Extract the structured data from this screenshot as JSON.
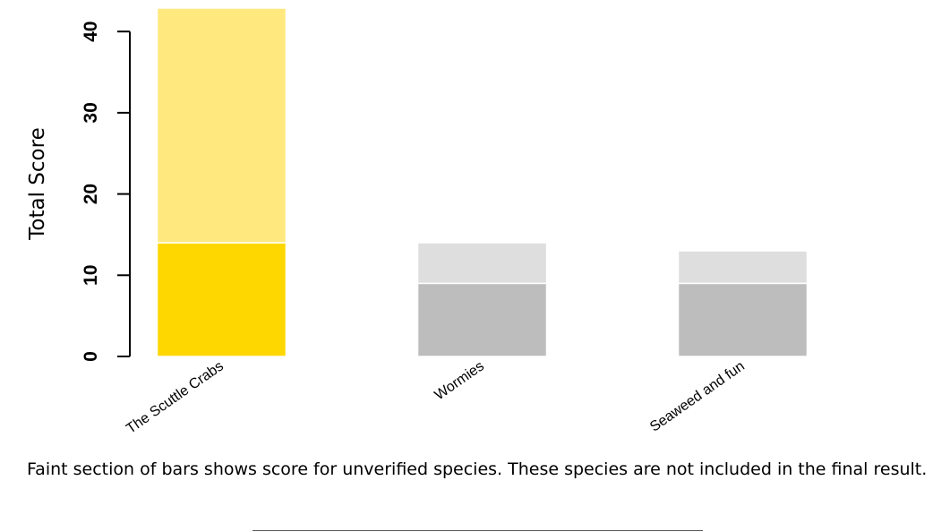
{
  "chart_data": {
    "type": "bar",
    "stacked": true,
    "categories": [
      "The Scuttle Crabs",
      "Wormies",
      "Seaweed and fun"
    ],
    "series": [
      {
        "verified": true,
        "values": [
          14,
          9,
          9
        ],
        "colors": [
          "#FFD700",
          "#BDBDBD",
          "#BDBDBD"
        ]
      },
      {
        "verified": false,
        "values": [
          29,
          5,
          4
        ],
        "colors": [
          "#FFE97F",
          "#DEDEDE",
          "#DEDEDE"
        ]
      }
    ],
    "ylabel": "Total Score",
    "yticks": [
      0,
      10,
      20,
      30,
      40
    ],
    "ylim": [
      0,
      43
    ],
    "grid": false
  },
  "caption": "Faint section of bars shows score for unverified species. These species are not included in the final result."
}
